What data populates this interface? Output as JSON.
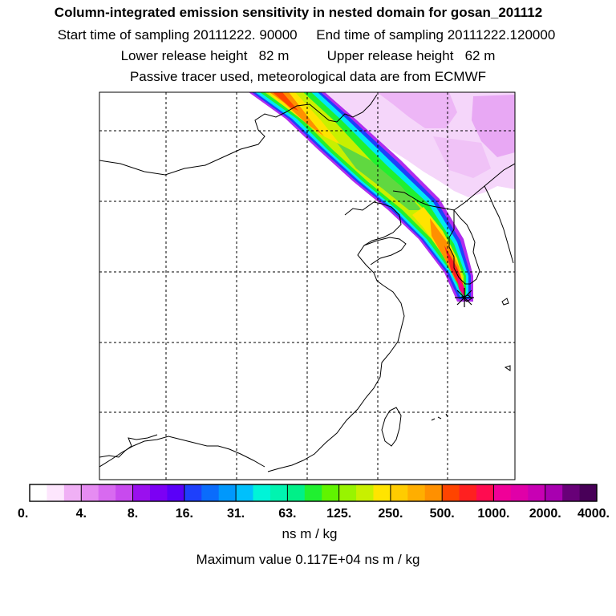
{
  "header": {
    "title": "Column-integrated emission sensitivity in nested domain for gosan_201112",
    "sampling_line": "Start time of sampling 20111222. 90000     End time of sampling 20111222.120000",
    "release_line": "Lower release height   82 m          Upper release height   62 m",
    "tracer_line": "Passive tracer used, meteorological data are from ECMWF"
  },
  "colors": {
    "background": "#ffffff",
    "grid": "#000000",
    "coast": "#000000",
    "receptor": "#000000"
  },
  "receptor": {
    "name": "gosan",
    "marker": "asterisk"
  },
  "chart_data": {
    "type": "heatmap",
    "title": "Column-integrated emission sensitivity in nested domain for gosan_201112",
    "colorbar": {
      "unit": "ns m / kg",
      "ticks": [
        "0.",
        "4.",
        "8.",
        "16.",
        "31.",
        "63.",
        "125.",
        "250.",
        "500.",
        "1000.",
        "2000.",
        "4000."
      ],
      "tick_values": [
        0,
        4,
        8,
        16,
        31,
        63,
        125,
        250,
        500,
        1000,
        2000,
        4000
      ],
      "colors": [
        "#ffffff",
        "#fde6fd",
        "#f8ccf8",
        "#f0b0f5",
        "#e68cf2",
        "#d86af0",
        "#c84aee",
        "#b02cee",
        "#9a10ee",
        "#7c00f4",
        "#5a00f8",
        "#3a10fa",
        "#1e40fc",
        "#0a6cfc",
        "#0098fc",
        "#00c0fc",
        "#00e8f4",
        "#00f4d8",
        "#00f4b0",
        "#00f088",
        "#00e860",
        "#20f030",
        "#60f400",
        "#98f400",
        "#c8f000",
        "#e8f000",
        "#ffe400",
        "#ffcc00",
        "#ffae00",
        "#ff9000",
        "#ff6c00",
        "#ff4400",
        "#ff2020",
        "#ff0c50",
        "#ff0080",
        "#f00098",
        "#e000a8",
        "#c800b4",
        "#a800b0",
        "#880098",
        "#680078",
        "#480058"
      ]
    },
    "max_value_text": "Maximum value  0.117E+04 ns m / kg",
    "grid": true
  }
}
